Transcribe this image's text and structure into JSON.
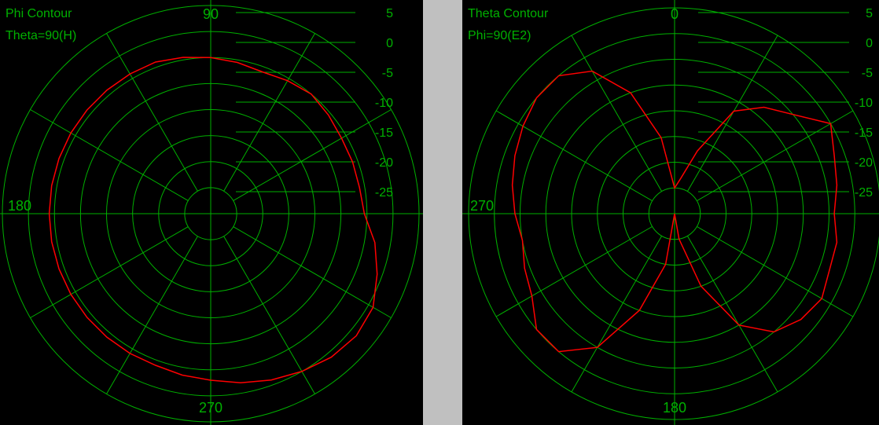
{
  "colors": {
    "background": "#000000",
    "grid": "#00b000",
    "text": "#00b000",
    "pattern": "#ff0000",
    "divider": "#c0c0c0"
  },
  "chart_data": [
    {
      "type": "polar",
      "title": "Phi Contour",
      "subtitle": "Theta=90(H)",
      "angle_labels": [
        "90",
        "180",
        "270"
      ],
      "radial_labels": [
        "5",
        "0",
        "-5",
        "-10",
        "-15",
        "-20",
        "-25"
      ],
      "radial_range_db": [
        -35,
        5
      ],
      "angle_zero_direction": "right",
      "angle_direction": "counterclockwise",
      "grid": true,
      "series": [
        {
          "angle": [
            0,
            10,
            20,
            30,
            40,
            50,
            60,
            70,
            80,
            90,
            100,
            110,
            120,
            130,
            140,
            150,
            160,
            170,
            180,
            190,
            200,
            210,
            220,
            230,
            240,
            250,
            260,
            270,
            280,
            290,
            300,
            310,
            320,
            330,
            340,
            350
          ],
          "gain_db": [
            -5.5,
            -6,
            -6,
            -6,
            -5.5,
            -5,
            -5.5,
            -6,
            -5.5,
            -5,
            -4.5,
            -4,
            -4,
            -4,
            -4,
            -4,
            -4,
            -4,
            -4,
            -4,
            -4,
            -4,
            -4,
            -4,
            -4,
            -4,
            -3.5,
            -3,
            -2,
            -1,
            0,
            1,
            1.5,
            1,
            -1,
            -3
          ]
        }
      ]
    },
    {
      "type": "polar",
      "title": "Theta Contour",
      "subtitle": "Phi=90(E2)",
      "angle_labels": [
        "0",
        "270",
        "180"
      ],
      "radial_labels": [
        "5",
        "0",
        "-5",
        "-10",
        "-15",
        "-20",
        "-25"
      ],
      "radial_range_db": [
        -35,
        5
      ],
      "angle_zero_direction": "up",
      "angle_direction": "counterclockwise",
      "grid": true,
      "series": [
        {
          "angle": [
            0,
            10,
            20,
            30,
            40,
            50,
            60,
            70,
            80,
            90,
            100,
            110,
            120,
            130,
            140,
            150,
            160,
            170,
            180,
            190,
            200,
            210,
            220,
            230,
            240,
            250,
            260,
            270,
            280,
            290,
            300,
            310,
            320,
            330,
            340,
            350
          ],
          "gain_db": [
            -30,
            -20,
            -10,
            -3,
            0,
            0,
            -1,
            -2,
            -3,
            -4,
            -5,
            -4,
            -3,
            0,
            0,
            -5,
            -15,
            -25,
            -35,
            -30,
            -20,
            -10,
            -5,
            -3,
            -2,
            -3,
            -3,
            -4,
            -3,
            -2,
            0,
            -5,
            -8,
            -12,
            -22,
            -28
          ]
        }
      ]
    }
  ]
}
